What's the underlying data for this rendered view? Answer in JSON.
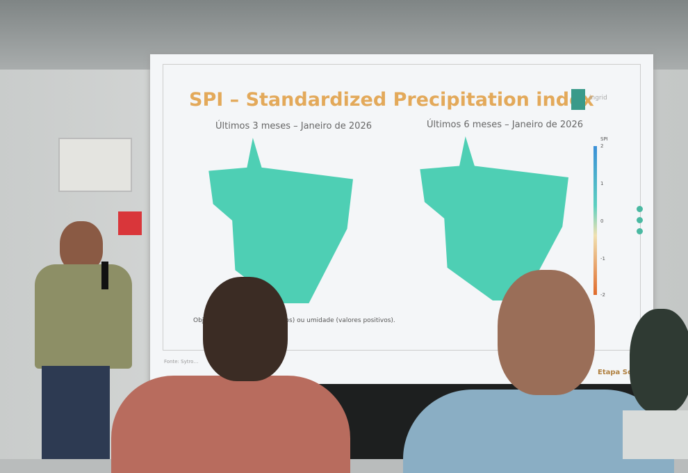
{
  "slide": {
    "title": "SPI – Standardized Precipitation index",
    "left_map_title": "Últimos 3 meses – Janeiro de 2026",
    "right_map_title": "Últimos 6 meses – Janeiro de 2026",
    "colorbar": {
      "label": "SPI",
      "ticks": [
        "2",
        "1",
        "0",
        "-1",
        "-2"
      ]
    },
    "note": "Objet… seca (valores negativos) ou umidade (valores positivos).",
    "source": "Fonte: Sytro…",
    "footer": "Etapa Soja",
    "logo_text": "ingrid",
    "colors": {
      "title": "#e3a95a",
      "wet": "#4ecfb4",
      "dry": "#e06a2a"
    }
  }
}
